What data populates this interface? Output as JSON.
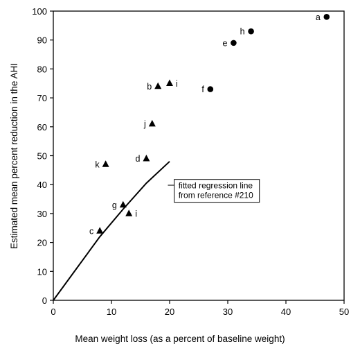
{
  "chart_data": {
    "type": "scatter",
    "xlabel": "Mean weight loss (as a percent of baseline weight)",
    "ylabel": "Estimated mean percent reduction in the AHI",
    "xlim": [
      0,
      50
    ],
    "ylim": [
      0,
      100
    ],
    "x_ticks": [
      0,
      10,
      20,
      30,
      40,
      50
    ],
    "y_ticks": [
      0,
      10,
      20,
      30,
      40,
      50,
      60,
      70,
      80,
      90,
      100
    ],
    "grid": false,
    "series": [
      {
        "marker": "circle",
        "points": [
          {
            "label": "a",
            "x": 47,
            "y": 98
          },
          {
            "label": "h",
            "x": 34,
            "y": 93
          },
          {
            "label": "e",
            "x": 31,
            "y": 89
          },
          {
            "label": "f",
            "x": 27,
            "y": 73
          }
        ]
      },
      {
        "marker": "triangle",
        "points": [
          {
            "label": "b",
            "x": 18,
            "y": 74
          },
          {
            "label": "i",
            "x": 20,
            "y": 75
          },
          {
            "label": "j",
            "x": 17,
            "y": 61
          },
          {
            "label": "d",
            "x": 16,
            "y": 49
          },
          {
            "label": "k",
            "x": 9,
            "y": 47
          },
          {
            "label": "g",
            "x": 12,
            "y": 33
          },
          {
            "label": "i",
            "x": 13,
            "y": 30
          },
          {
            "label": "c",
            "x": 8,
            "y": 24
          }
        ]
      }
    ],
    "regression_line": {
      "points": [
        [
          0,
          0
        ],
        [
          4,
          11
        ],
        [
          8,
          22
        ],
        [
          12,
          31.5
        ],
        [
          16,
          40.5
        ],
        [
          20,
          48
        ]
      ]
    },
    "annotations": [
      {
        "text_lines": [
          "fitted regression line",
          "from reference #210"
        ]
      }
    ]
  }
}
